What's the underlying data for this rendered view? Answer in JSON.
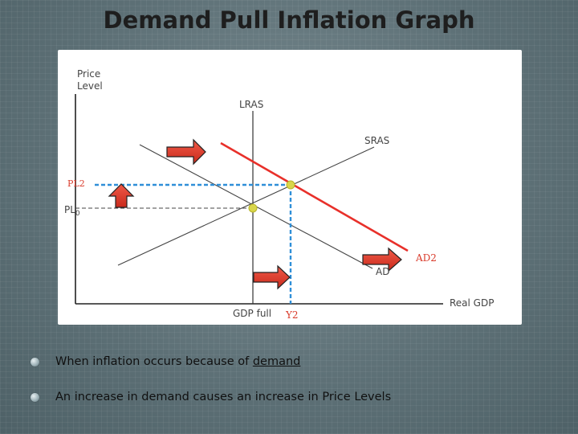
{
  "slide": {
    "title": "Demand Pull Inflation Graph"
  },
  "graph": {
    "y_axis_label_line1": "Price",
    "y_axis_label_line2": "Level",
    "x_axis_label": "Real GDP",
    "lras_label": "LRAS",
    "sras_label": "SRAS",
    "ad_label": "AD",
    "ad2_label": "AD2",
    "pl0_label": "PL",
    "pl0_subscript": "0",
    "pl2_label": "PL2",
    "gdp_full_label": "GDP full",
    "y2_label": "Y2",
    "colors": {
      "ad2_curve": "#e8302a",
      "guide_lines": "#2f8fd8",
      "arrows": "#e23b2c",
      "equilibrium_points": "#d9d64a",
      "gray_text": "#444444",
      "red_text": "#d93a2a"
    }
  },
  "bullets": [
    {
      "prefix": "When inflation occurs because of ",
      "emph": "demand"
    },
    {
      "text": "An increase in demand causes an increase in Price Levels"
    }
  ]
}
